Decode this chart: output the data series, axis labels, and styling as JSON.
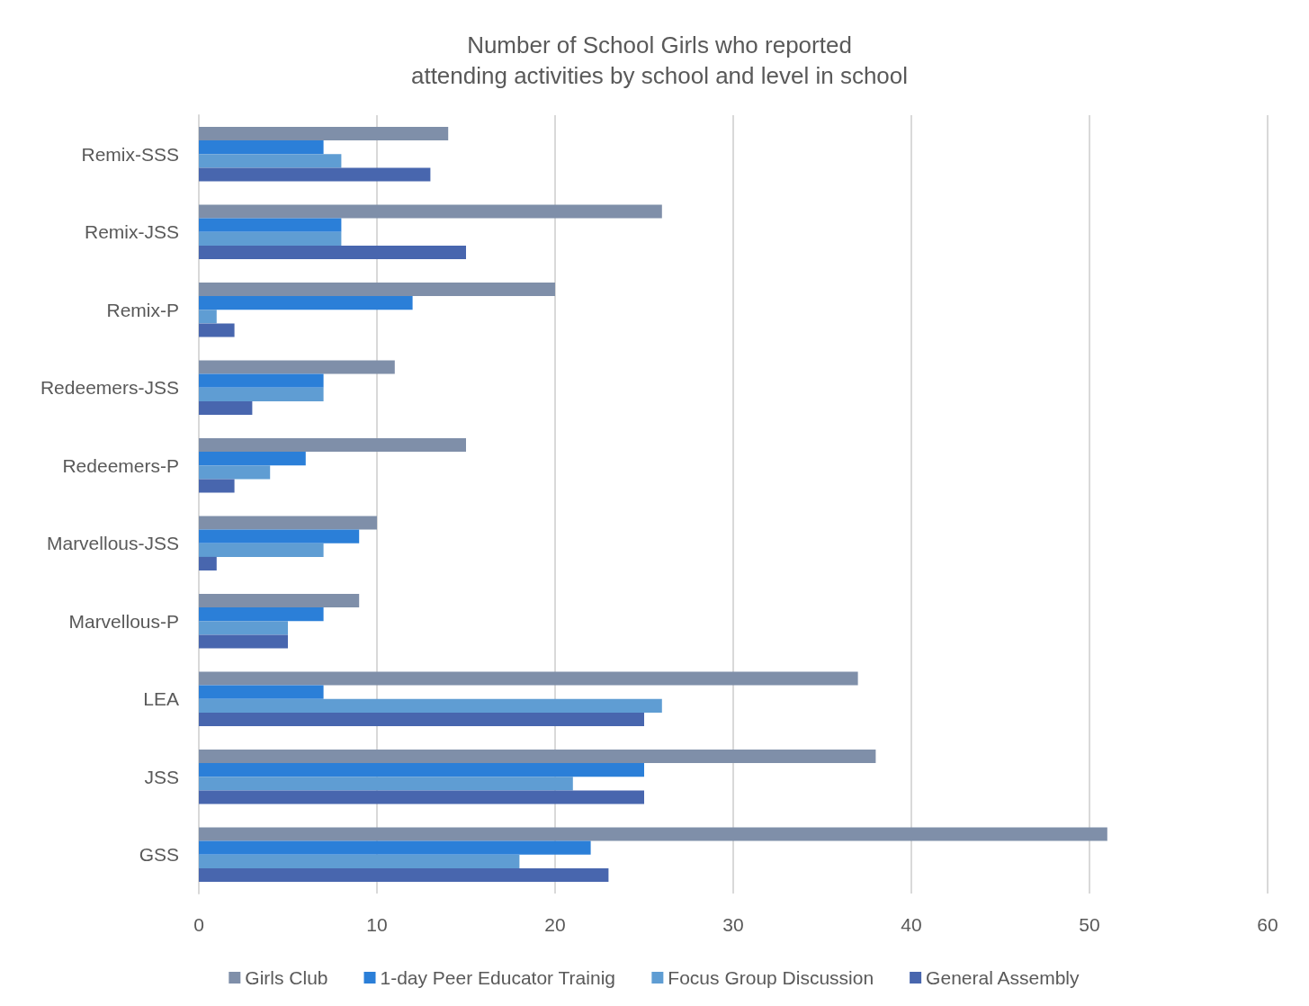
{
  "chart_data": {
    "type": "bar",
    "orientation": "horizontal",
    "title": "Number of School Girls who reported\nattending activities by school and level in school",
    "categories": [
      "Remix-SSS",
      "Remix-JSS",
      "Remix-P",
      "Redeemers-JSS",
      "Redeemers-P",
      "Marvellous-JSS",
      "Marvellous-P",
      "LEA",
      "JSS",
      "GSS"
    ],
    "series": [
      {
        "name": "Girls Club",
        "color": "#7f8fa9",
        "values": [
          14,
          26,
          20,
          11,
          15,
          10,
          9,
          37,
          38,
          51
        ]
      },
      {
        "name": "1-day Peer Educator Trainig",
        "color": "#2b7fd8",
        "values": [
          7,
          8,
          12,
          7,
          6,
          9,
          7,
          7,
          25,
          22
        ]
      },
      {
        "name": "Focus Group Discussion",
        "color": "#5f9dd3",
        "values": [
          8,
          8,
          1,
          7,
          4,
          7,
          5,
          26,
          21,
          18
        ]
      },
      {
        "name": "General Assembly",
        "color": "#4866ae",
        "values": [
          13,
          15,
          2,
          3,
          2,
          1,
          5,
          25,
          25,
          23
        ]
      }
    ],
    "xlim": [
      0,
      60
    ],
    "xticks": [
      0,
      10,
      20,
      30,
      40,
      50,
      60
    ],
    "grid": "x",
    "legend": "bottom"
  }
}
